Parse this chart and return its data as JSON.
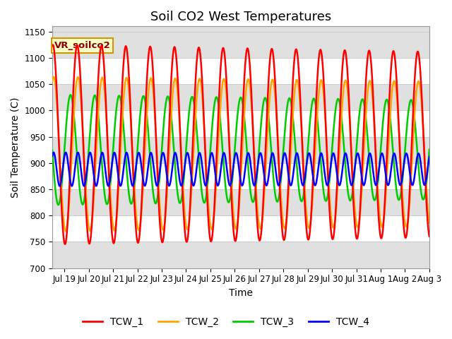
{
  "title": "Soil CO2 West Temperatures",
  "xlabel": "Time",
  "ylabel": "Soil Temperature (C)",
  "ylim": [
    700,
    1160
  ],
  "xlim_days": [
    0.0,
    15.5
  ],
  "x_tick_labels": [
    "Jul 19",
    "Jul 20",
    "Jul 21",
    "Jul 22",
    "Jul 23",
    "Jul 24",
    "Jul 25",
    "Jul 26",
    "Jul 27",
    "Jul 28",
    "Jul 29",
    "Jul 30",
    "Jul 31",
    "Aug 1",
    "Aug 2",
    "Aug 3"
  ],
  "x_tick_positions": [
    0.5,
    1.5,
    2.5,
    3.5,
    4.5,
    5.5,
    6.5,
    7.5,
    8.5,
    9.5,
    10.5,
    11.5,
    12.5,
    13.5,
    14.5,
    15.5
  ],
  "series": {
    "TCW_1": {
      "color": "#FF0000",
      "lw": 1.8
    },
    "TCW_2": {
      "color": "#FFA500",
      "lw": 1.8
    },
    "TCW_3": {
      "color": "#00CC00",
      "lw": 1.8
    },
    "TCW_4": {
      "color": "#0000FF",
      "lw": 1.8
    }
  },
  "annotation_label": "VR_soilco2",
  "annotation_box_color": "#FFFFCC",
  "annotation_box_edge": "#CC9900",
  "bg_color": "#FFFFFF",
  "plot_bg_color": "#E0E0E0",
  "yticks": [
    700,
    750,
    800,
    850,
    900,
    950,
    1000,
    1050,
    1100,
    1150
  ],
  "title_fontsize": 13,
  "axis_label_fontsize": 10,
  "tick_fontsize": 8.5,
  "legend_fontsize": 10
}
